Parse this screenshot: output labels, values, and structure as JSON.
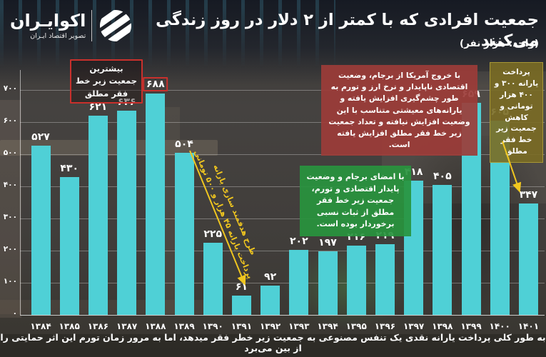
{
  "header": {
    "title": "جمعیت افرادی که با کمتر از ۲ دلار در روز زندگی می‌کنند",
    "unit": "(واحد: هزار نفر)",
    "logo": {
      "name": "اکوایـران",
      "tagline": "تصویر اقتصاد ایـران"
    }
  },
  "chart_data": {
    "type": "bar",
    "title": "جمعیت افرادی که با کمتر از ۲ دلار در روز زندگی می‌کنند",
    "unit_label": "(واحد: هزار نفر)",
    "categories": [
      1384,
      1385,
      1386,
      1387,
      1388,
      1389,
      1390,
      1391,
      1392,
      1393,
      1394,
      1395,
      1396,
      1397,
      1398,
      1399,
      1400,
      1401
    ],
    "category_labels": [
      "۱۳۸۴",
      "۱۳۸۵",
      "۱۳۸۶",
      "۱۳۸۷",
      "۱۳۸۸",
      "۱۳۸۹",
      "۱۳۹۰",
      "۱۳۹۱",
      "۱۳۹۲",
      "۱۳۹۳",
      "۱۳۹۴",
      "۱۳۹۵",
      "۱۳۹۶",
      "۱۳۹۷",
      "۱۳۹۸",
      "۱۳۹۹",
      "۱۴۰۰",
      "۱۴۰۱"
    ],
    "values": [
      527,
      430,
      621,
      636,
      688,
      504,
      225,
      61,
      92,
      202,
      197,
      216,
      219,
      418,
      405,
      659,
      605,
      347
    ],
    "value_labels": [
      "۵۲۷",
      "۴۳۰",
      "۶۲۱",
      "۶۳۶",
      "۶۸۸",
      "۵۰۴",
      "۲۲۵",
      "۶۱",
      "۹۲",
      "۲۰۲",
      "۱۹۷",
      "۲۱۶",
      "۲۱۹",
      "۴۱۸",
      "۴۰۵",
      "۶۵۹",
      "۶۰۵",
      "۳۴۷"
    ],
    "ylim": [
      0,
      700
    ],
    "yticks": [
      0,
      100,
      200,
      300,
      400,
      500,
      600,
      700
    ],
    "ytick_labels": [
      "۰",
      "۱۰۰",
      "۲۰۰",
      "۳۰۰",
      "۴۰۰",
      "۵۰۰",
      "۶۰۰",
      "۷۰۰"
    ],
    "bar_color": "#4fd0d6",
    "grid": true,
    "legend_position": "none",
    "highlight_index": 4
  },
  "annotations": {
    "peak_note": "بیشترین جمعیت زیر خط فقر مطلق",
    "red_note": "با خروج آمریکا از برجام، وضعیت اقتصادی ناپایدار و نرخ ارز و تورم به طور چشم‌گیری افزایش یافته و یارانه‌های معیشتی متناسب با این وضعیت افزایش نیافته و تعداد جمعیت زیر خط فقر مطلق افزایش یافته است.",
    "green_note": "با امضای برجام و وضعیت پایدار اقتصادی و تورم، جمعیت زیر خط فقر مطلق از ثبات نسبی برخوردار بوده است.",
    "yellow_note": "پرداخت یارانه ۳۰۰ و ۴۰۰ هزار تومانی و کاهش جمعیت زیر خط فقر مطلق",
    "arrow_note_line1": "طرح هدفمند سازی یارانه",
    "arrow_note_line2": "پرداخت یارانه ۴۵ هزار و ۵۰۰ تومانی"
  },
  "colors": {
    "bar": "#4fd0d6",
    "highlight_border": "#c9302c",
    "red_box": "#9c3c38",
    "green_box": "#28943e",
    "yellow_box": "#7a6c23",
    "arrow_yellow": "#f0c61f"
  },
  "footer": {
    "text": "به طور کلی پرداخت یارانه نقدی یک تنفس مصنوعی به جمعیت زیر خطر فقر میدهد، اما به مرور زمان تورم این اثر حمایتی را از بین می‌برد"
  }
}
